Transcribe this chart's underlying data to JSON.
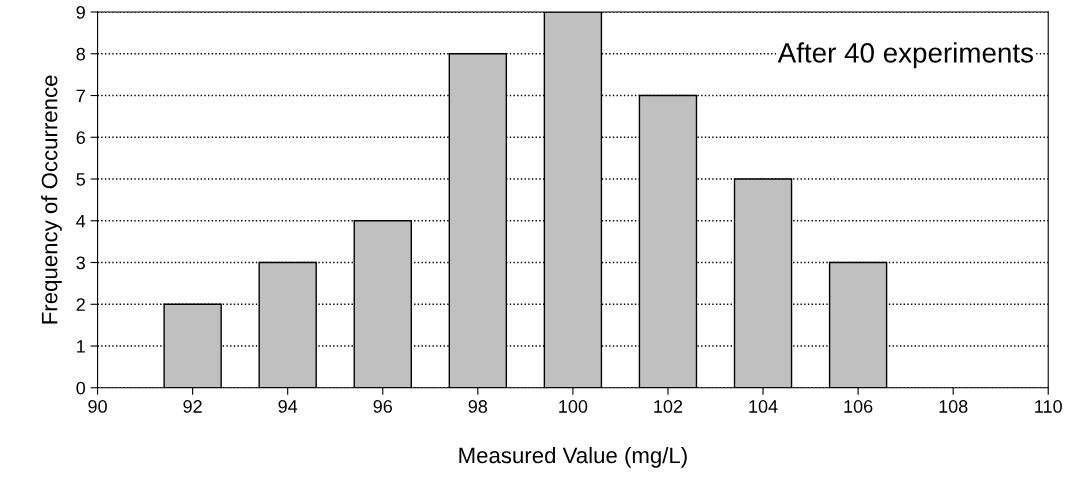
{
  "chart_data": {
    "type": "bar",
    "xlabel": "Measured Value (mg/L)",
    "ylabel": "Frequency of Occurrence",
    "x": [
      92,
      94,
      96,
      98,
      100,
      102,
      104,
      106
    ],
    "values": [
      2,
      3,
      4,
      8,
      9,
      7,
      5,
      3
    ],
    "color": "#c0c0c0",
    "xlim": [
      90,
      110
    ],
    "xticks": [
      90,
      92,
      94,
      96,
      98,
      100,
      102,
      104,
      106,
      108,
      110
    ],
    "ylim": [
      0,
      9
    ],
    "yticks": [
      0,
      1,
      2,
      3,
      4,
      5,
      6,
      7,
      8,
      9
    ],
    "grid": "y",
    "line_style": "dotted",
    "annotations": [
      "After 40 experiments"
    ]
  }
}
